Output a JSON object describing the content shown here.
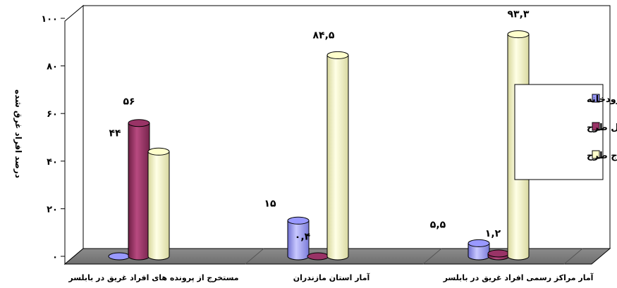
{
  "chart_data": {
    "type": "bar",
    "title": "",
    "ylabel": "درصد افراد غرق شده",
    "xlabel": "",
    "ylim": [
      0,
      100
    ],
    "yticks": [
      0,
      20,
      40,
      60,
      80,
      100
    ],
    "ytick_labels": [
      "۰",
      "۲۰",
      "۴۰",
      "۶۰",
      "۸۰",
      "۱۰۰"
    ],
    "categories": [
      "مستخرج از پرونده های افراد غریق در بابلسر",
      "آمار استان مازندران",
      "آمار مراکز رسمی افراد غریق در بابلسر"
    ],
    "series": [
      {
        "name": "رودخانه",
        "color": "#9999ff",
        "values": [
          0.5,
          15,
          5.5
        ],
        "labels": [
          "",
          "۱۵",
          "۵,۵"
        ]
      },
      {
        "name": "داخل طرح",
        "color": "#993366",
        "values": [
          56,
          0.4,
          1.2
        ],
        "labels": [
          "۵۶",
          "۰,۴",
          "۱,۲"
        ]
      },
      {
        "name": "خارج طرح",
        "color": "#ffffcc",
        "values": [
          44,
          84.5,
          93.3
        ],
        "labels": [
          "۴۴",
          "۸۴,۵",
          "۹۳,۳"
        ]
      }
    ],
    "legend_position": "right",
    "grid": false,
    "style": "3d-cylinder"
  }
}
